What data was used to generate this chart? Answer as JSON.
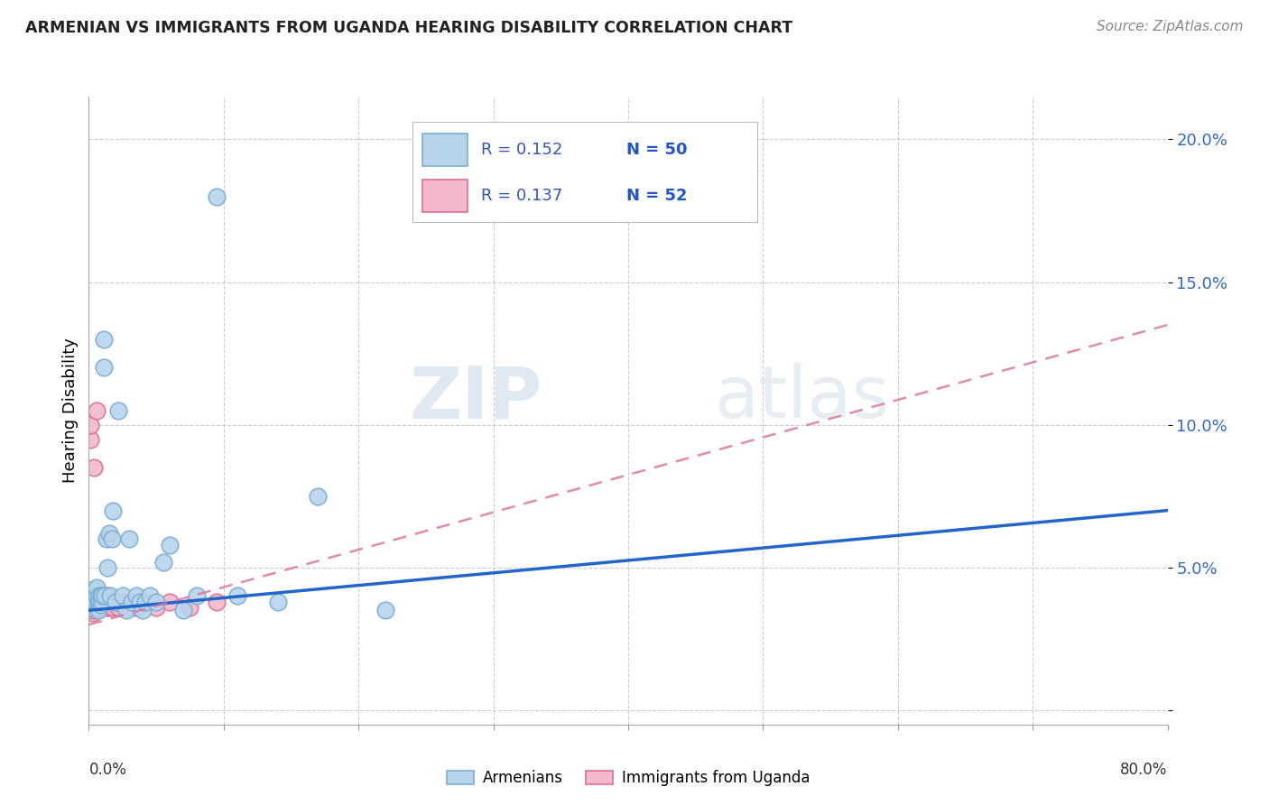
{
  "title": "ARMENIAN VS IMMIGRANTS FROM UGANDA HEARING DISABILITY CORRELATION CHART",
  "source": "Source: ZipAtlas.com",
  "ylabel": "Hearing Disability",
  "watermark": "ZIPatlas",
  "legend_armenian_R": "R = 0.152",
  "legend_armenian_N": "N = 50",
  "legend_uganda_R": "R = 0.137",
  "legend_uganda_N": "N = 52",
  "xlim": [
    0.0,
    0.8
  ],
  "ylim": [
    -0.005,
    0.215
  ],
  "yticks": [
    0.0,
    0.05,
    0.1,
    0.15,
    0.2
  ],
  "ytick_labels": [
    "",
    "5.0%",
    "10.0%",
    "15.0%",
    "20.0%"
  ],
  "armenian_color": "#b8d4eb",
  "armenian_edge": "#7aafd4",
  "uganda_color": "#f2b8cc",
  "uganda_edge": "#e07090",
  "line_armenian_color": "#2266cc",
  "line_uganda_color": "#dd7799",
  "armenian_x": [
    0.001,
    0.002,
    0.002,
    0.003,
    0.003,
    0.003,
    0.004,
    0.004,
    0.005,
    0.005,
    0.006,
    0.006,
    0.007,
    0.007,
    0.008,
    0.008,
    0.009,
    0.009,
    0.01,
    0.01,
    0.011,
    0.011,
    0.012,
    0.013,
    0.014,
    0.015,
    0.016,
    0.017,
    0.018,
    0.02,
    0.022,
    0.025,
    0.028,
    0.03,
    0.032,
    0.035,
    0.038,
    0.04,
    0.042,
    0.045,
    0.05,
    0.055,
    0.06,
    0.07,
    0.08,
    0.095,
    0.11,
    0.14,
    0.17,
    0.22
  ],
  "armenian_y": [
    0.037,
    0.036,
    0.04,
    0.038,
    0.04,
    0.042,
    0.037,
    0.04,
    0.038,
    0.042,
    0.04,
    0.043,
    0.035,
    0.038,
    0.04,
    0.038,
    0.037,
    0.04,
    0.038,
    0.04,
    0.12,
    0.13,
    0.04,
    0.06,
    0.05,
    0.062,
    0.04,
    0.06,
    0.07,
    0.038,
    0.105,
    0.04,
    0.035,
    0.06,
    0.038,
    0.04,
    0.038,
    0.035,
    0.038,
    0.04,
    0.038,
    0.052,
    0.058,
    0.035,
    0.04,
    0.18,
    0.04,
    0.038,
    0.075,
    0.035
  ],
  "uganda_x": [
    0.001,
    0.001,
    0.001,
    0.001,
    0.001,
    0.002,
    0.002,
    0.002,
    0.002,
    0.002,
    0.003,
    0.003,
    0.003,
    0.003,
    0.003,
    0.004,
    0.004,
    0.004,
    0.004,
    0.005,
    0.005,
    0.005,
    0.006,
    0.006,
    0.006,
    0.007,
    0.007,
    0.007,
    0.008,
    0.008,
    0.009,
    0.009,
    0.01,
    0.01,
    0.011,
    0.012,
    0.013,
    0.014,
    0.015,
    0.016,
    0.018,
    0.02,
    0.022,
    0.025,
    0.028,
    0.032,
    0.035,
    0.04,
    0.05,
    0.06,
    0.075,
    0.095
  ],
  "uganda_y": [
    0.036,
    0.038,
    0.04,
    0.095,
    0.1,
    0.035,
    0.037,
    0.038,
    0.04,
    0.042,
    0.034,
    0.036,
    0.038,
    0.04,
    0.042,
    0.035,
    0.037,
    0.04,
    0.085,
    0.038,
    0.04,
    0.042,
    0.036,
    0.038,
    0.105,
    0.036,
    0.038,
    0.04,
    0.036,
    0.038,
    0.036,
    0.038,
    0.036,
    0.038,
    0.036,
    0.038,
    0.036,
    0.04,
    0.036,
    0.038,
    0.036,
    0.038,
    0.036,
    0.038,
    0.036,
    0.038,
    0.036,
    0.038,
    0.036,
    0.038,
    0.036,
    0.038
  ],
  "arm_line_x0": 0.0,
  "arm_line_x1": 0.8,
  "arm_line_y0": 0.035,
  "arm_line_y1": 0.07,
  "ug_line_x0": 0.0,
  "ug_line_x1": 0.8,
  "ug_line_y0": 0.03,
  "ug_line_y1": 0.135
}
